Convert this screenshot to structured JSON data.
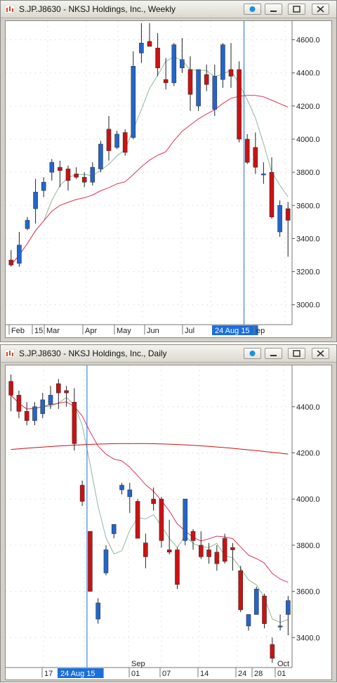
{
  "windows": [
    {
      "title": "S.JP.J8630 - NKSJ Holdings, Inc., Weekly",
      "x_labels": [
        "Feb",
        "15",
        "Mar",
        "Apr",
        "May",
        "Jun",
        "Jul",
        "24 Aug 15",
        "ep"
      ],
      "y_ticks": [
        "4600.0",
        "4400.0",
        "4200.0",
        "4000.0",
        "3800.0",
        "3600.0",
        "3400.0",
        "3200.0",
        "3000.0"
      ]
    },
    {
      "title": "S.JP.J8630 - NKSJ Holdings, Inc., Daily",
      "x_labels": [
        "17",
        "24 Aug 15",
        "Sep",
        "01",
        "07",
        "14",
        "24",
        "28",
        "Oct",
        "01"
      ],
      "y_ticks": [
        "4400.0",
        "4200.0",
        "4000.0",
        "3800.0",
        "3600.0",
        "3400.0"
      ]
    }
  ],
  "chart_data": [
    {
      "type": "candlestick",
      "title": "S.JP.J8630 - NKSJ Holdings, Inc., Weekly",
      "ylim": [
        2880,
        4700
      ],
      "grid": true,
      "cursor_label": "24 Aug 15",
      "cursor_index": 29,
      "colors": {
        "up": "#2266cc",
        "down": "#cc1111",
        "ma_fast": "#8fb89a",
        "ma_slow": "#dd3355",
        "cursor": "#1a6fdd"
      },
      "candles": [
        {
          "o": 3270,
          "h": 3330,
          "l": 3230,
          "c": 3240
        },
        {
          "o": 3250,
          "h": 3440,
          "l": 3230,
          "c": 3360
        },
        {
          "o": 3460,
          "h": 3530,
          "l": 3450,
          "c": 3510
        },
        {
          "o": 3580,
          "h": 3760,
          "l": 3490,
          "c": 3680
        },
        {
          "o": 3690,
          "h": 3770,
          "l": 3650,
          "c": 3740
        },
        {
          "o": 3800,
          "h": 3880,
          "l": 3750,
          "c": 3860
        },
        {
          "o": 3830,
          "h": 3870,
          "l": 3710,
          "c": 3810
        },
        {
          "o": 3820,
          "h": 3840,
          "l": 3690,
          "c": 3750
        },
        {
          "o": 3790,
          "h": 3830,
          "l": 3760,
          "c": 3770
        },
        {
          "o": 3770,
          "h": 3800,
          "l": 3710,
          "c": 3740
        },
        {
          "o": 3740,
          "h": 3860,
          "l": 3720,
          "c": 3830
        },
        {
          "o": 3820,
          "h": 3990,
          "l": 3800,
          "c": 3970
        },
        {
          "o": 4060,
          "h": 4140,
          "l": 3870,
          "c": 3930
        },
        {
          "o": 3950,
          "h": 4050,
          "l": 3940,
          "c": 4030
        },
        {
          "o": 4040,
          "h": 4060,
          "l": 3900,
          "c": 3920
        },
        {
          "o": 4010,
          "h": 4530,
          "l": 4000,
          "c": 4440
        },
        {
          "o": 4520,
          "h": 4700,
          "l": 4460,
          "c": 4580
        },
        {
          "o": 4590,
          "h": 4700,
          "l": 4560,
          "c": 4560
        },
        {
          "o": 4550,
          "h": 4640,
          "l": 4380,
          "c": 4430
        },
        {
          "o": 4360,
          "h": 4490,
          "l": 4300,
          "c": 4340
        },
        {
          "o": 4340,
          "h": 4580,
          "l": 4320,
          "c": 4570
        },
        {
          "o": 4430,
          "h": 4610,
          "l": 4400,
          "c": 4480
        },
        {
          "o": 4420,
          "h": 4500,
          "l": 4170,
          "c": 4270
        },
        {
          "o": 4200,
          "h": 4420,
          "l": 4170,
          "c": 4420
        },
        {
          "o": 4390,
          "h": 4450,
          "l": 4290,
          "c": 4330
        },
        {
          "o": 4180,
          "h": 4450,
          "l": 4140,
          "c": 4380
        },
        {
          "o": 4360,
          "h": 4580,
          "l": 4310,
          "c": 4570
        },
        {
          "o": 4420,
          "h": 4580,
          "l": 4310,
          "c": 4380
        },
        {
          "o": 4420,
          "h": 4470,
          "l": 3980,
          "c": 4000
        },
        {
          "o": 4000,
          "h": 4030,
          "l": 3850,
          "c": 3860
        },
        {
          "o": 3950,
          "h": 4040,
          "l": 3790,
          "c": 3830
        },
        {
          "o": 3790,
          "h": 3860,
          "l": 3730,
          "c": 3790
        },
        {
          "o": 3800,
          "h": 3890,
          "l": 3520,
          "c": 3530
        },
        {
          "o": 3440,
          "h": 3630,
          "l": 3410,
          "c": 3600
        },
        {
          "o": 3580,
          "h": 3620,
          "l": 3290,
          "c": 3510
        }
      ]
    },
    {
      "type": "candlestick",
      "title": "S.JP.J8630 - NKSJ Holdings, Inc., Daily",
      "ylim": [
        3270,
        4570
      ],
      "grid": true,
      "cursor_label": "24 Aug 15",
      "cursor_index": 10,
      "colors": {
        "up": "#2266cc",
        "down": "#cc1111",
        "ma_fast": "#8fb89a",
        "ma_slow": "#dd3355",
        "ma_long": "#cc1111",
        "cursor": "#1a6fdd"
      },
      "candles": [
        {
          "o": 4510,
          "h": 4540,
          "l": 4380,
          "c": 4450
        },
        {
          "o": 4450,
          "h": 4470,
          "l": 4350,
          "c": 4380
        },
        {
          "o": 4380,
          "h": 4420,
          "l": 4320,
          "c": 4340
        },
        {
          "o": 4340,
          "h": 4420,
          "l": 4320,
          "c": 4400
        },
        {
          "o": 4370,
          "h": 4460,
          "l": 4350,
          "c": 4430
        },
        {
          "o": 4410,
          "h": 4490,
          "l": 4390,
          "c": 4450
        },
        {
          "o": 4500,
          "h": 4520,
          "l": 4390,
          "c": 4460
        },
        {
          "o": 4470,
          "h": 4490,
          "l": 4400,
          "c": 4460
        },
        {
          "o": 4420,
          "h": 4480,
          "l": 4210,
          "c": 4240
        },
        {
          "o": 4060,
          "h": 4080,
          "l": 3970,
          "c": 3990
        },
        {
          "o": 3860,
          "h": 3860,
          "l": 3600,
          "c": 3600
        },
        {
          "o": 3480,
          "h": 3570,
          "l": 3460,
          "c": 3550
        },
        {
          "o": 3680,
          "h": 3800,
          "l": 3670,
          "c": 3780
        },
        {
          "o": 3850,
          "h": 3890,
          "l": 3830,
          "c": 3890
        },
        {
          "o": 4040,
          "h": 4070,
          "l": 4020,
          "c": 4060
        },
        {
          "o": 4010,
          "h": 4070,
          "l": 3940,
          "c": 4040
        },
        {
          "o": 3990,
          "h": 4000,
          "l": 3830,
          "c": 3830
        },
        {
          "o": 3810,
          "h": 3850,
          "l": 3700,
          "c": 3750
        },
        {
          "o": 4000,
          "h": 4050,
          "l": 3950,
          "c": 3980
        },
        {
          "o": 4000,
          "h": 4010,
          "l": 3790,
          "c": 3820
        },
        {
          "o": 3780,
          "h": 3910,
          "l": 3760,
          "c": 3770
        },
        {
          "o": 3780,
          "h": 3790,
          "l": 3610,
          "c": 3630
        },
        {
          "o": 3820,
          "h": 4000,
          "l": 3800,
          "c": 4000
        },
        {
          "o": 3860,
          "h": 3870,
          "l": 3780,
          "c": 3820
        },
        {
          "o": 3800,
          "h": 3860,
          "l": 3740,
          "c": 3750
        },
        {
          "o": 3780,
          "h": 3810,
          "l": 3720,
          "c": 3750
        },
        {
          "o": 3770,
          "h": 3800,
          "l": 3690,
          "c": 3720
        },
        {
          "o": 3830,
          "h": 3850,
          "l": 3720,
          "c": 3730
        },
        {
          "o": 3790,
          "h": 3810,
          "l": 3690,
          "c": 3780
        },
        {
          "o": 3690,
          "h": 3710,
          "l": 3510,
          "c": 3520
        },
        {
          "o": 3450,
          "h": 3500,
          "l": 3430,
          "c": 3500
        },
        {
          "o": 3500,
          "h": 3620,
          "l": 3500,
          "c": 3610
        },
        {
          "o": 3580,
          "h": 3590,
          "l": 3440,
          "c": 3460
        },
        {
          "o": 3370,
          "h": 3400,
          "l": 3290,
          "c": 3310
        },
        {
          "o": 3450,
          "h": 3500,
          "l": 3430,
          "c": 3450
        },
        {
          "o": 3500,
          "h": 3580,
          "l": 3410,
          "c": 3560
        }
      ]
    }
  ]
}
